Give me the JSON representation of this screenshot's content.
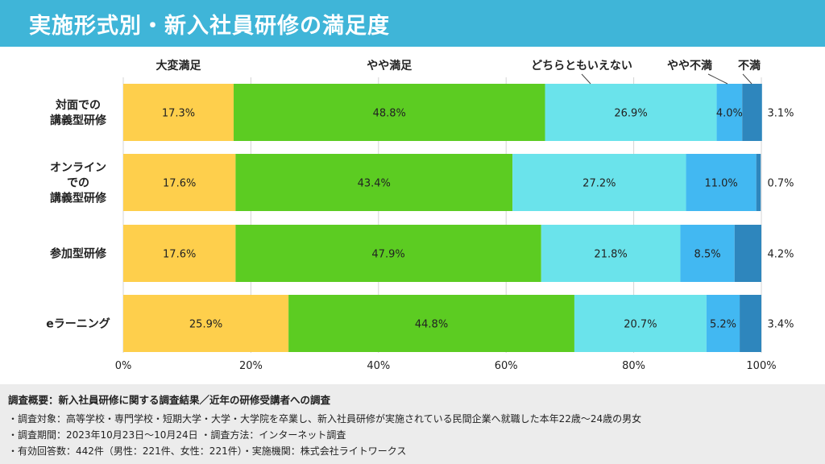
{
  "header": {
    "title": "実施形式別・新入社員研修の満足度"
  },
  "colors": {
    "header_bg": "#3fb5d8",
    "seg_very_satisfied": "#fecf4c",
    "seg_somewhat_satisfied": "#5ccc22",
    "seg_neutral": "#6ae3eb",
    "seg_somewhat_dissatisfied": "#42b8f2",
    "seg_dissatisfied": "#2e86bd"
  },
  "chart_data": {
    "type": "bar",
    "orientation": "horizontal",
    "stacked": true,
    "title": "",
    "xlabel": "",
    "ylabel": "",
    "xlim": [
      0,
      100
    ],
    "x_ticks": [
      "0%",
      "20%",
      "40%",
      "60%",
      "80%",
      "100%"
    ],
    "grid": true,
    "legend_position": "top",
    "categories": [
      [
        "対面での",
        "講義型研修"
      ],
      [
        "オンライン",
        "での",
        "講義型研修"
      ],
      [
        "参加型研修"
      ],
      [
        "eラーニング"
      ]
    ],
    "series": [
      {
        "name": "大変満足",
        "values": [
          17.3,
          17.6,
          17.6,
          25.9
        ],
        "labels": [
          "17.3%",
          "17.6%",
          "17.6%",
          "25.9%"
        ]
      },
      {
        "name": "やや満足",
        "values": [
          48.8,
          43.4,
          47.9,
          44.8
        ],
        "labels": [
          "48.8%",
          "43.4%",
          "47.9%",
          "44.8%"
        ]
      },
      {
        "name": "どちらともいえない",
        "values": [
          26.9,
          27.2,
          21.8,
          20.7
        ],
        "labels": [
          "26.9%",
          "27.2%",
          "21.8%",
          "20.7%"
        ]
      },
      {
        "name": "やや不満",
        "values": [
          4.0,
          11.0,
          8.5,
          5.2
        ],
        "labels": [
          "4.0%",
          "11.0%",
          "8.5%",
          "5.2%"
        ]
      },
      {
        "name": "不満",
        "values": [
          3.1,
          0.7,
          4.2,
          3.4
        ],
        "labels": [
          "3.1%",
          "0.7%",
          "4.2%",
          "3.4%"
        ]
      }
    ]
  },
  "footer": {
    "title": "調査概要：新入社員研修に関する調査結果／近年の研修受講者への調査",
    "lines": [
      "・調査対象：高等学校・専門学校・短期大学・大学・大学院を卒業し、新入社員研修が実施されている民間企業へ就職した本年22歳～24歳の男女",
      "・調査期間：2023年10月23日～10月24日 ・調査方法：インターネット調査",
      "・有効回答数：442件（男性：221件、女性：221件）・実施機関：株式会社ライトワークス"
    ]
  }
}
